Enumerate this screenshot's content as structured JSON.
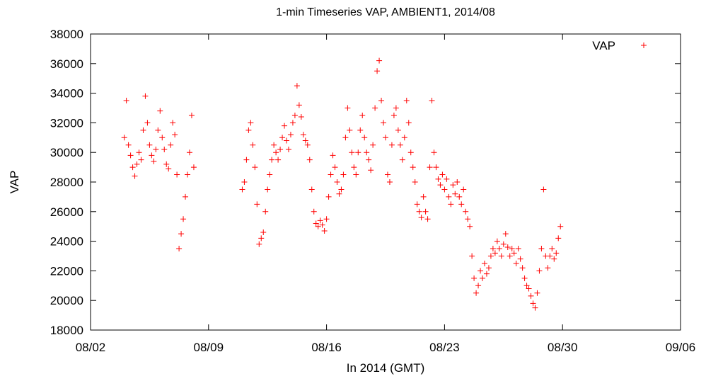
{
  "chart_data": {
    "type": "scatter",
    "title": "1-min Timeseries VAP, AMBIENT1, 2014/08",
    "xlabel": "In 2014 (GMT)",
    "ylabel": "VAP",
    "x_tick_labels": [
      "08/02",
      "08/09",
      "08/16",
      "08/23",
      "08/30",
      "09/06"
    ],
    "xlim": [
      "2014-08-02",
      "2014-09-06"
    ],
    "ylim": [
      18000,
      38000
    ],
    "y_ticks": [
      18000,
      20000,
      22000,
      24000,
      26000,
      28000,
      30000,
      32000,
      34000,
      36000,
      38000
    ],
    "grid": false,
    "legend_position": "top-right",
    "marker": "+",
    "series": [
      {
        "name": "VAP",
        "color": "#ff0000",
        "points": [
          [
            "2014-08-04 00:00",
            31000
          ],
          [
            "2014-08-04 03:00",
            33500
          ],
          [
            "2014-08-04 06:00",
            30500
          ],
          [
            "2014-08-04 09:00",
            29800
          ],
          [
            "2014-08-04 12:00",
            29000
          ],
          [
            "2014-08-04 15:00",
            28400
          ],
          [
            "2014-08-04 18:00",
            29200
          ],
          [
            "2014-08-04 21:00",
            30000
          ],
          [
            "2014-08-05 00:00",
            29500
          ],
          [
            "2014-08-05 03:00",
            31500
          ],
          [
            "2014-08-05 06:00",
            33800
          ],
          [
            "2014-08-05 09:00",
            32000
          ],
          [
            "2014-08-05 12:00",
            30500
          ],
          [
            "2014-08-05 15:00",
            29800
          ],
          [
            "2014-08-05 18:00",
            29400
          ],
          [
            "2014-08-05 21:00",
            30200
          ],
          [
            "2014-08-06 00:00",
            31500
          ],
          [
            "2014-08-06 03:00",
            32800
          ],
          [
            "2014-08-06 06:00",
            31000
          ],
          [
            "2014-08-06 09:00",
            30200
          ],
          [
            "2014-08-06 12:00",
            29200
          ],
          [
            "2014-08-06 15:00",
            28900
          ],
          [
            "2014-08-06 18:00",
            30500
          ],
          [
            "2014-08-06 21:00",
            32000
          ],
          [
            "2014-08-07 00:00",
            31200
          ],
          [
            "2014-08-07 03:00",
            28500
          ],
          [
            "2014-08-07 06:00",
            23500
          ],
          [
            "2014-08-07 09:00",
            24500
          ],
          [
            "2014-08-07 12:00",
            25500
          ],
          [
            "2014-08-07 15:00",
            27000
          ],
          [
            "2014-08-07 18:00",
            28500
          ],
          [
            "2014-08-07 21:00",
            30000
          ],
          [
            "2014-08-08 00:00",
            32500
          ],
          [
            "2014-08-08 03:00",
            29000
          ],
          [
            "2014-08-11 00:00",
            27500
          ],
          [
            "2014-08-11 03:00",
            28000
          ],
          [
            "2014-08-11 06:00",
            29500
          ],
          [
            "2014-08-11 09:00",
            31500
          ],
          [
            "2014-08-11 12:00",
            32000
          ],
          [
            "2014-08-11 15:00",
            30500
          ],
          [
            "2014-08-11 18:00",
            29000
          ],
          [
            "2014-08-11 21:00",
            26500
          ],
          [
            "2014-08-12 00:00",
            23800
          ],
          [
            "2014-08-12 03:00",
            24200
          ],
          [
            "2014-08-12 06:00",
            24600
          ],
          [
            "2014-08-12 09:00",
            26000
          ],
          [
            "2014-08-12 12:00",
            27500
          ],
          [
            "2014-08-12 15:00",
            28500
          ],
          [
            "2014-08-12 18:00",
            29500
          ],
          [
            "2014-08-12 21:00",
            30500
          ],
          [
            "2014-08-13 00:00",
            30000
          ],
          [
            "2014-08-13 03:00",
            29500
          ],
          [
            "2014-08-13 06:00",
            30200
          ],
          [
            "2014-08-13 09:00",
            31000
          ],
          [
            "2014-08-13 12:00",
            31800
          ],
          [
            "2014-08-13 15:00",
            30800
          ],
          [
            "2014-08-13 18:00",
            30200
          ],
          [
            "2014-08-13 21:00",
            31200
          ],
          [
            "2014-08-14 00:00",
            32000
          ],
          [
            "2014-08-14 03:00",
            32500
          ],
          [
            "2014-08-14 06:00",
            34500
          ],
          [
            "2014-08-14 09:00",
            33200
          ],
          [
            "2014-08-14 12:00",
            32400
          ],
          [
            "2014-08-14 15:00",
            31200
          ],
          [
            "2014-08-14 18:00",
            30800
          ],
          [
            "2014-08-14 21:00",
            30500
          ],
          [
            "2014-08-15 00:00",
            29500
          ],
          [
            "2014-08-15 03:00",
            27500
          ],
          [
            "2014-08-15 06:00",
            26000
          ],
          [
            "2014-08-15 09:00",
            25200
          ],
          [
            "2014-08-15 12:00",
            25000
          ],
          [
            "2014-08-15 15:00",
            25400
          ],
          [
            "2014-08-15 18:00",
            25100
          ],
          [
            "2014-08-15 21:00",
            24700
          ],
          [
            "2014-08-16 00:00",
            25500
          ],
          [
            "2014-08-16 03:00",
            27000
          ],
          [
            "2014-08-16 06:00",
            28500
          ],
          [
            "2014-08-16 09:00",
            29800
          ],
          [
            "2014-08-16 12:00",
            29000
          ],
          [
            "2014-08-16 15:00",
            28000
          ],
          [
            "2014-08-16 18:00",
            27200
          ],
          [
            "2014-08-16 21:00",
            27500
          ],
          [
            "2014-08-17 00:00",
            28500
          ],
          [
            "2014-08-17 03:00",
            31000
          ],
          [
            "2014-08-17 06:00",
            33000
          ],
          [
            "2014-08-17 09:00",
            31500
          ],
          [
            "2014-08-17 12:00",
            30000
          ],
          [
            "2014-08-17 15:00",
            29000
          ],
          [
            "2014-08-17 18:00",
            28500
          ],
          [
            "2014-08-17 21:00",
            30000
          ],
          [
            "2014-08-18 00:00",
            31500
          ],
          [
            "2014-08-18 03:00",
            32500
          ],
          [
            "2014-08-18 06:00",
            31000
          ],
          [
            "2014-08-18 09:00",
            30000
          ],
          [
            "2014-08-18 12:00",
            29500
          ],
          [
            "2014-08-18 15:00",
            28800
          ],
          [
            "2014-08-18 18:00",
            30500
          ],
          [
            "2014-08-18 21:00",
            33000
          ],
          [
            "2014-08-19 00:00",
            35500
          ],
          [
            "2014-08-19 03:00",
            36200
          ],
          [
            "2014-08-19 06:00",
            33500
          ],
          [
            "2014-08-19 09:00",
            32000
          ],
          [
            "2014-08-19 12:00",
            31000
          ],
          [
            "2014-08-19 15:00",
            28500
          ],
          [
            "2014-08-19 18:00",
            28000
          ],
          [
            "2014-08-19 21:00",
            30500
          ],
          [
            "2014-08-20 00:00",
            32500
          ],
          [
            "2014-08-20 03:00",
            33000
          ],
          [
            "2014-08-20 06:00",
            31500
          ],
          [
            "2014-08-20 09:00",
            30500
          ],
          [
            "2014-08-20 12:00",
            29500
          ],
          [
            "2014-08-20 15:00",
            31000
          ],
          [
            "2014-08-20 18:00",
            33500
          ],
          [
            "2014-08-20 21:00",
            32000
          ],
          [
            "2014-08-21 00:00",
            30000
          ],
          [
            "2014-08-21 03:00",
            29000
          ],
          [
            "2014-08-21 06:00",
            28000
          ],
          [
            "2014-08-21 09:00",
            26500
          ],
          [
            "2014-08-21 12:00",
            26000
          ],
          [
            "2014-08-21 15:00",
            25600
          ],
          [
            "2014-08-21 18:00",
            27000
          ],
          [
            "2014-08-21 21:00",
            26000
          ],
          [
            "2014-08-22 00:00",
            25500
          ],
          [
            "2014-08-22 03:00",
            29000
          ],
          [
            "2014-08-22 06:00",
            33500
          ],
          [
            "2014-08-22 09:00",
            30000
          ],
          [
            "2014-08-22 12:00",
            29000
          ],
          [
            "2014-08-22 15:00",
            28200
          ],
          [
            "2014-08-22 18:00",
            27800
          ],
          [
            "2014-08-22 21:00",
            28500
          ],
          [
            "2014-08-23 00:00",
            27500
          ],
          [
            "2014-08-23 03:00",
            28200
          ],
          [
            "2014-08-23 06:00",
            27000
          ],
          [
            "2014-08-23 09:00",
            26500
          ],
          [
            "2014-08-23 12:00",
            27800
          ],
          [
            "2014-08-23 15:00",
            27200
          ],
          [
            "2014-08-23 18:00",
            28000
          ],
          [
            "2014-08-23 21:00",
            27000
          ],
          [
            "2014-08-24 00:00",
            26500
          ],
          [
            "2014-08-24 03:00",
            27500
          ],
          [
            "2014-08-24 06:00",
            26000
          ],
          [
            "2014-08-24 09:00",
            25500
          ],
          [
            "2014-08-24 12:00",
            25000
          ],
          [
            "2014-08-24 15:00",
            23000
          ],
          [
            "2014-08-24 18:00",
            21500
          ],
          [
            "2014-08-24 21:00",
            20500
          ],
          [
            "2014-08-25 00:00",
            21000
          ],
          [
            "2014-08-25 03:00",
            22000
          ],
          [
            "2014-08-25 06:00",
            21500
          ],
          [
            "2014-08-25 09:00",
            22500
          ],
          [
            "2014-08-25 12:00",
            21800
          ],
          [
            "2014-08-25 15:00",
            22200
          ],
          [
            "2014-08-25 18:00",
            23000
          ],
          [
            "2014-08-25 21:00",
            23500
          ],
          [
            "2014-08-26 00:00",
            23200
          ],
          [
            "2014-08-26 03:00",
            24000
          ],
          [
            "2014-08-26 06:00",
            23500
          ],
          [
            "2014-08-26 09:00",
            23000
          ],
          [
            "2014-08-26 12:00",
            23800
          ],
          [
            "2014-08-26 15:00",
            24500
          ],
          [
            "2014-08-26 18:00",
            23600
          ],
          [
            "2014-08-26 21:00",
            23000
          ],
          [
            "2014-08-27 00:00",
            23500
          ],
          [
            "2014-08-27 03:00",
            23200
          ],
          [
            "2014-08-27 06:00",
            22500
          ],
          [
            "2014-08-27 09:00",
            23500
          ],
          [
            "2014-08-27 12:00",
            22800
          ],
          [
            "2014-08-27 15:00",
            22200
          ],
          [
            "2014-08-27 18:00",
            21500
          ],
          [
            "2014-08-27 21:00",
            21000
          ],
          [
            "2014-08-28 00:00",
            20800
          ],
          [
            "2014-08-28 03:00",
            20300
          ],
          [
            "2014-08-28 06:00",
            19800
          ],
          [
            "2014-08-28 09:00",
            19500
          ],
          [
            "2014-08-28 12:00",
            20500
          ],
          [
            "2014-08-28 15:00",
            22000
          ],
          [
            "2014-08-28 18:00",
            23500
          ],
          [
            "2014-08-28 21:00",
            27500
          ],
          [
            "2014-08-29 00:00",
            23000
          ],
          [
            "2014-08-29 03:00",
            22200
          ],
          [
            "2014-08-29 06:00",
            23000
          ],
          [
            "2014-08-29 09:00",
            23500
          ],
          [
            "2014-08-29 12:00",
            22800
          ],
          [
            "2014-08-29 15:00",
            23200
          ],
          [
            "2014-08-29 18:00",
            24200
          ],
          [
            "2014-08-29 21:00",
            25000
          ]
        ]
      }
    ]
  }
}
